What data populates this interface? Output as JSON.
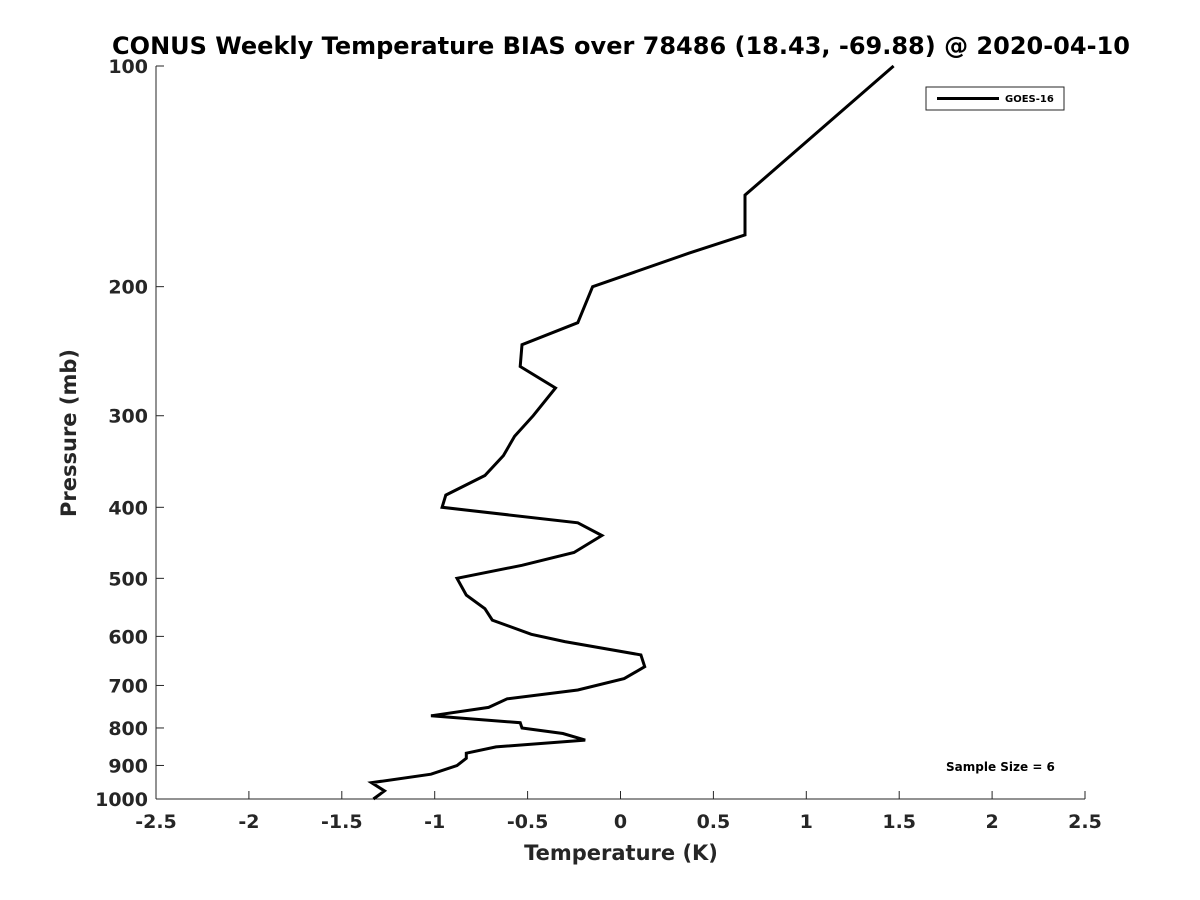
{
  "chart_data": {
    "type": "line",
    "title": "CONUS Weekly Temperature BIAS over 78486 (18.43, -69.88) @ 2020-04-10",
    "xlabel": "Temperature (K)",
    "ylabel": "Pressure (mb)",
    "xlim": [
      -2.5,
      2.5
    ],
    "ylim": [
      100,
      1000
    ],
    "yscale": "log",
    "yreversed": true,
    "grid": false,
    "legend_position": "top-right",
    "x_ticks": [
      "-2.5",
      "-2",
      "-1.5",
      "-1",
      "-0.5",
      "0",
      "0.5",
      "1",
      "1.5",
      "2",
      "2.5"
    ],
    "y_ticks": [
      "100",
      "200",
      "300",
      "400",
      "500",
      "600",
      "700",
      "800",
      "900",
      "1000"
    ],
    "annotation": "Sample Size = 6",
    "series": [
      {
        "name": "GOES-16",
        "color": "#000000",
        "points": [
          [
            1.47,
            100
          ],
          [
            0.67,
            150
          ],
          [
            0.67,
            170
          ],
          [
            0.37,
            180
          ],
          [
            -0.15,
            200
          ],
          [
            -0.23,
            224
          ],
          [
            -0.53,
            240
          ],
          [
            -0.54,
            257
          ],
          [
            -0.35,
            275
          ],
          [
            -0.47,
            300
          ],
          [
            -0.57,
            320
          ],
          [
            -0.63,
            340
          ],
          [
            -0.73,
            362
          ],
          [
            -0.94,
            385
          ],
          [
            -0.96,
            400
          ],
          [
            -0.23,
            420
          ],
          [
            -0.1,
            437
          ],
          [
            -0.25,
            461
          ],
          [
            -0.53,
            480
          ],
          [
            -0.88,
            500
          ],
          [
            -0.83,
            527
          ],
          [
            -0.73,
            550
          ],
          [
            -0.69,
            570
          ],
          [
            -0.48,
            596
          ],
          [
            -0.3,
            610
          ],
          [
            0.11,
            636
          ],
          [
            0.13,
            660
          ],
          [
            0.02,
            685
          ],
          [
            -0.23,
            710
          ],
          [
            -0.61,
            730
          ],
          [
            -0.71,
            750
          ],
          [
            -1.02,
            770
          ],
          [
            -0.54,
            787
          ],
          [
            -0.53,
            800
          ],
          [
            -0.31,
            814
          ],
          [
            -0.19,
            831
          ],
          [
            -0.67,
            849
          ],
          [
            -0.83,
            866
          ],
          [
            -0.83,
            880
          ],
          [
            -0.88,
            900
          ],
          [
            -1.02,
            925
          ],
          [
            -1.34,
            950
          ],
          [
            -1.27,
            975
          ],
          [
            -1.33,
            1000
          ]
        ]
      }
    ]
  }
}
